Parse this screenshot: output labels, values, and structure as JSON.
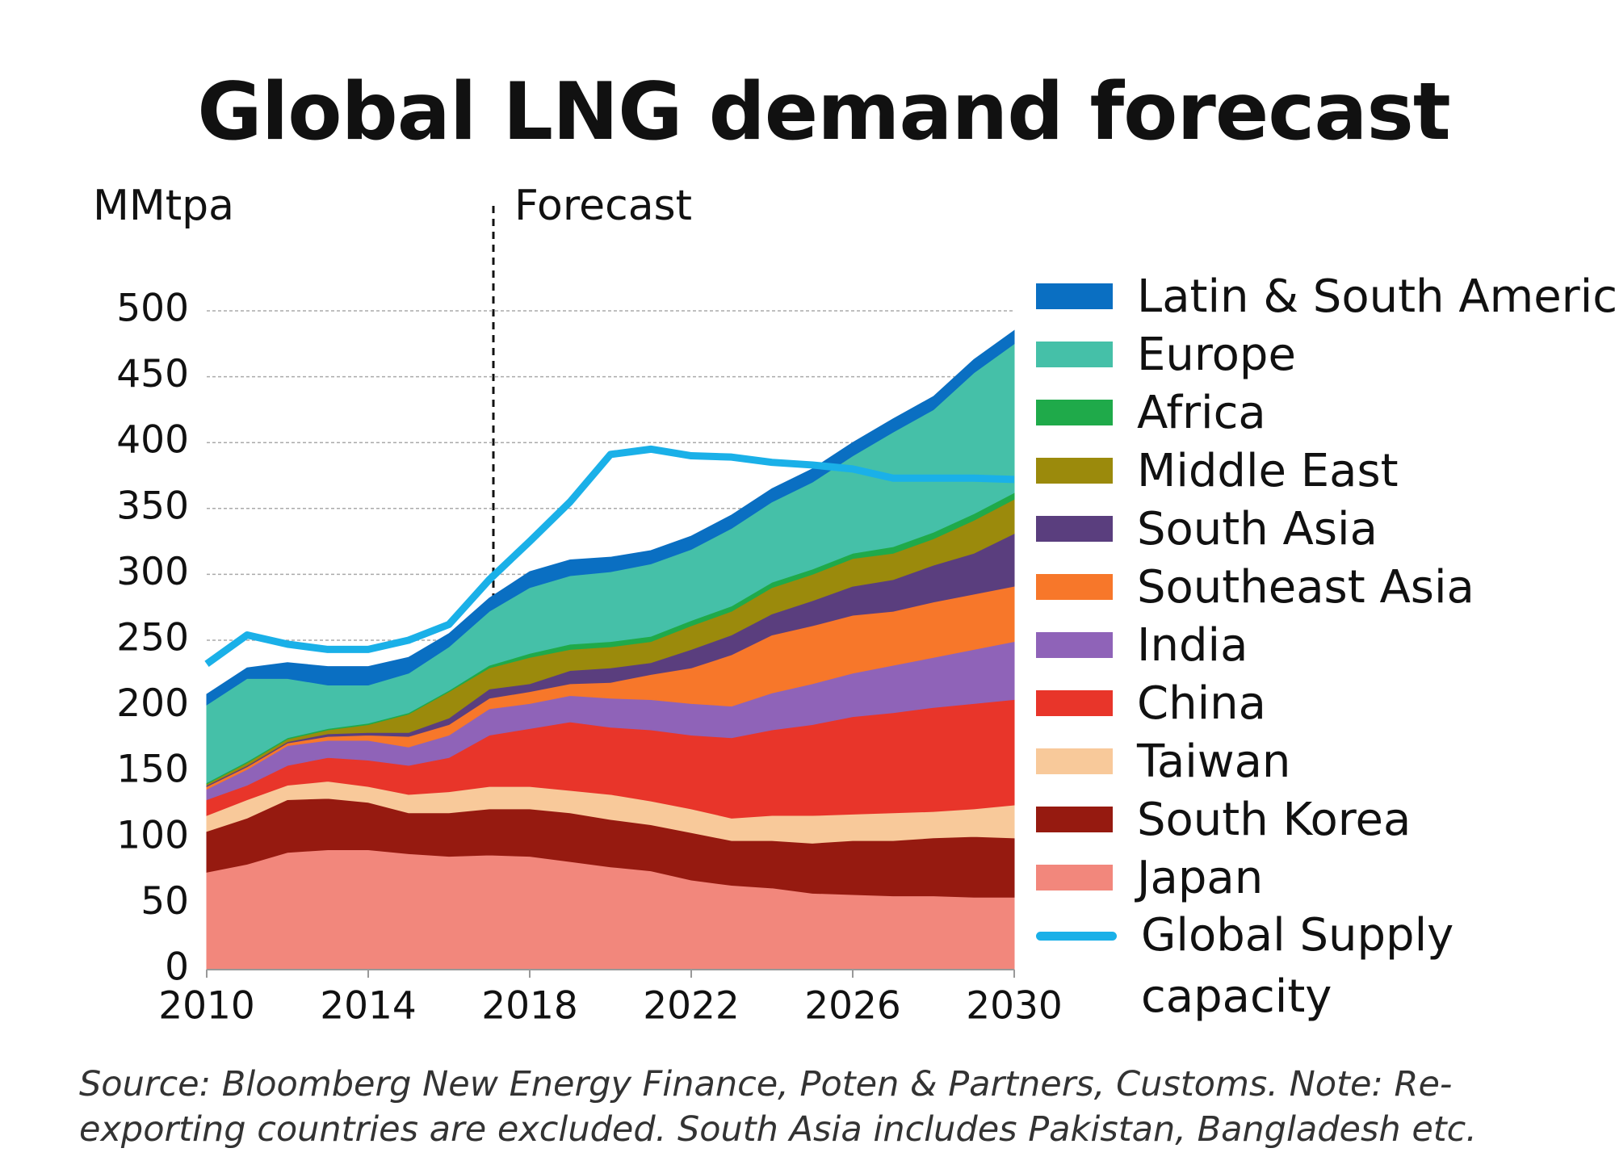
{
  "chart_data": {
    "type": "area",
    "title": "Global LNG demand forecast",
    "y_label": "MMtpa",
    "annotation": "Forecast",
    "source": "Source: Bloomberg New Energy Finance, Poten & Partners, Customs. Note: Re-exporting countries are excluded. South Asia includes Pakistan, Bangladesh etc.",
    "stacked": true,
    "grid": true,
    "legend": "right",
    "x": [
      2010,
      2011,
      2012,
      2013,
      2014,
      2015,
      2016,
      2017,
      2018,
      2019,
      2020,
      2021,
      2022,
      2023,
      2024,
      2025,
      2026,
      2027,
      2028,
      2029,
      2030
    ],
    "xlim": [
      2010,
      2030
    ],
    "xticks": [
      2010,
      2014,
      2018,
      2022,
      2026,
      2030
    ],
    "ylim": [
      0,
      500
    ],
    "yticks": [
      0,
      50,
      100,
      150,
      200,
      250,
      300,
      350,
      400,
      450,
      500
    ],
    "series": [
      {
        "name": "Japan",
        "color": "#f2877c",
        "values": [
          74,
          80,
          89,
          91,
          91,
          88,
          86,
          87,
          86,
          82,
          78,
          75,
          68,
          64,
          62,
          58,
          57,
          56,
          56,
          55,
          55
        ]
      },
      {
        "name": "South Korea",
        "color": "#961a10",
        "values": [
          31,
          35,
          40,
          39,
          36,
          31,
          33,
          35,
          36,
          37,
          36,
          35,
          36,
          34,
          36,
          38,
          41,
          42,
          44,
          46,
          45
        ]
      },
      {
        "name": "Taiwan",
        "color": "#f8c99a",
        "values": [
          12,
          14,
          11,
          13,
          12,
          14,
          16,
          17,
          17,
          17,
          19,
          18,
          18,
          17,
          19,
          21,
          20,
          21,
          20,
          21,
          25
        ]
      },
      {
        "name": "China",
        "color": "#e8352a",
        "values": [
          12,
          11,
          15,
          18,
          20,
          22,
          26,
          39,
          44,
          52,
          51,
          54,
          56,
          61,
          65,
          69,
          74,
          76,
          79,
          80,
          80
        ]
      },
      {
        "name": "India",
        "color": "#8f63b8",
        "values": [
          8,
          12,
          15,
          13,
          15,
          14,
          17,
          20,
          19,
          20,
          22,
          23,
          24,
          24,
          28,
          31,
          33,
          36,
          38,
          41,
          44
        ]
      },
      {
        "name": "Southeast Asia",
        "color": "#f7772a",
        "values": [
          2,
          2,
          2,
          3,
          4,
          8,
          8,
          8,
          9,
          9,
          12,
          19,
          27,
          39,
          44,
          44,
          44,
          41,
          42,
          42,
          42
        ]
      },
      {
        "name": "South Asia",
        "color": "#5a3e7e",
        "values": [
          1,
          1,
          1,
          2,
          2,
          3,
          5,
          7,
          6,
          10,
          11,
          9,
          14,
          15,
          16,
          19,
          22,
          24,
          28,
          31,
          40
        ]
      },
      {
        "name": "Middle East",
        "color": "#9b8a0c",
        "values": [
          1,
          2,
          2,
          3,
          6,
          14,
          20,
          16,
          20,
          16,
          16,
          16,
          18,
          18,
          20,
          20,
          21,
          20,
          20,
          25,
          26
        ]
      },
      {
        "name": "Africa",
        "color": "#1faa4a",
        "values": [
          1,
          1,
          1,
          1,
          1,
          1,
          1,
          2,
          3,
          4,
          4,
          4,
          4,
          4,
          4,
          4,
          4,
          5,
          5,
          5,
          5
        ]
      },
      {
        "name": "Europe",
        "color": "#45c0a8",
        "values": [
          59,
          63,
          45,
          33,
          29,
          30,
          33,
          41,
          50,
          52,
          53,
          55,
          54,
          59,
          61,
          66,
          74,
          87,
          93,
          107,
          113
        ]
      },
      {
        "name": "Latin & South America",
        "color": "#0a6fc2",
        "values": [
          8,
          8,
          12,
          14,
          14,
          12,
          10,
          10,
          12,
          12,
          11,
          10,
          10,
          10,
          10,
          10,
          10,
          10,
          10,
          10,
          10
        ]
      },
      {
        "name": "Global Supply capacity",
        "color": "#1ab0e8",
        "type": "line",
        "values": [
          232,
          254,
          247,
          243,
          243,
          250,
          262,
          296,
          325,
          355,
          391,
          395,
          390,
          389,
          385,
          383,
          380,
          373,
          373,
          373,
          372
        ]
      }
    ]
  }
}
